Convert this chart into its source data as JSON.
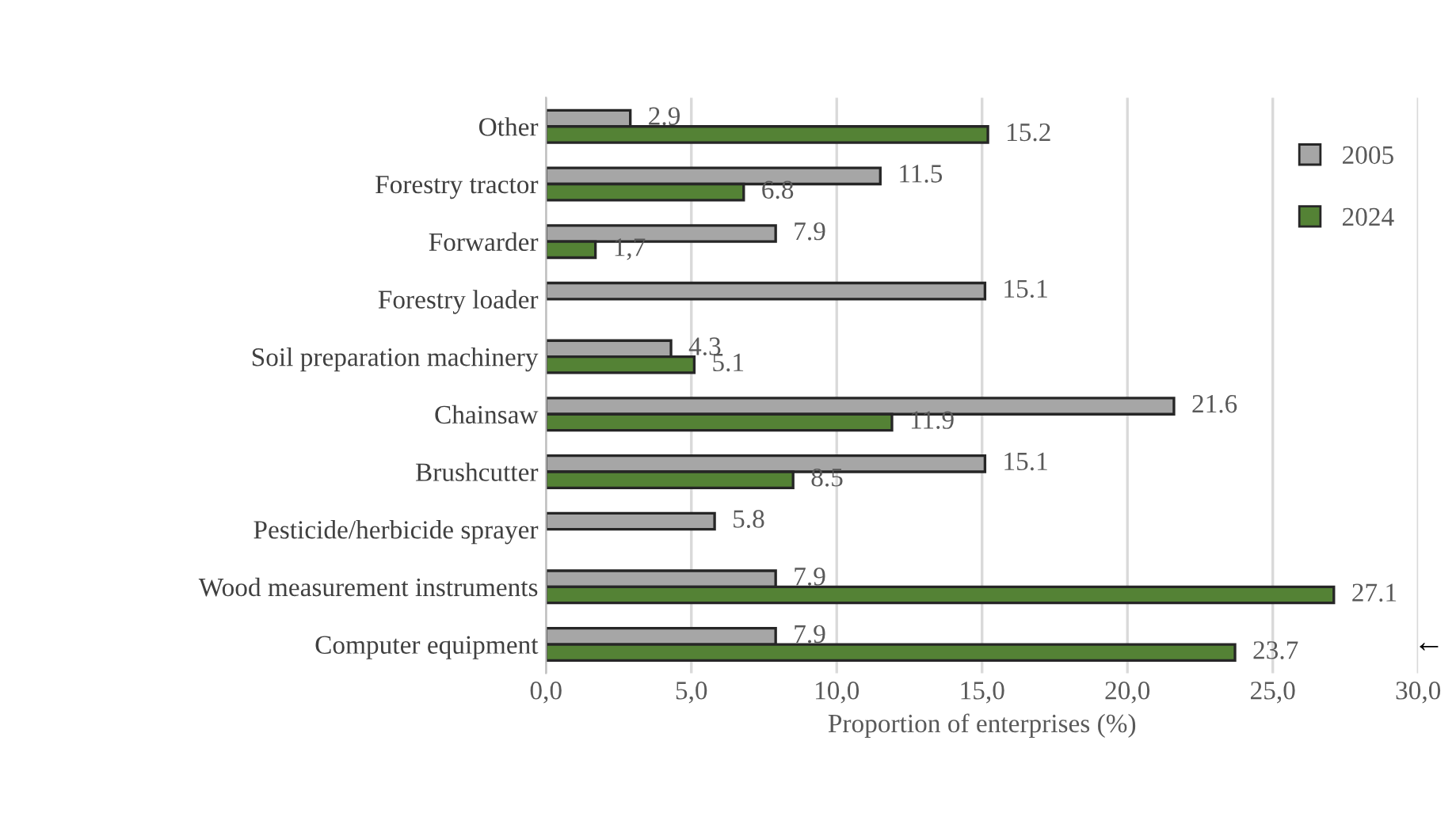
{
  "chart_data": {
    "type": "bar",
    "orientation": "horizontal",
    "xlabel": "Proportion of enterprises (%)",
    "categories": [
      "Other",
      "Forestry tractor",
      "Forwarder",
      "Forestry loader",
      "Soil preparation machinery",
      "Chainsaw",
      "Brushcutter",
      "Pesticide/herbicide sprayer",
      "Wood measurement instruments",
      "Computer equipment"
    ],
    "series": [
      {
        "name": "2005",
        "color": "#a6a6a6",
        "values": [
          2.9,
          11.5,
          7.9,
          15.1,
          4.3,
          21.6,
          15.1,
          5.8,
          7.9,
          7.9
        ],
        "value_labels": [
          "2.9",
          "11.5",
          "7.9",
          "15.1",
          "4.3",
          "21.6",
          "15.1",
          "5.8",
          "7.9",
          "7.9"
        ]
      },
      {
        "name": "2024",
        "color": "#548235",
        "values": [
          15.2,
          6.8,
          1.7,
          null,
          5.1,
          11.9,
          8.5,
          null,
          27.1,
          23.7
        ],
        "value_labels": [
          "15.2",
          "6.8",
          "1,7",
          null,
          "5.1",
          "11.9",
          "8.5",
          null,
          "27.1",
          "23.7"
        ]
      }
    ],
    "xlim": [
      0,
      30
    ],
    "xticks": [
      {
        "value": 0,
        "label": "0,0"
      },
      {
        "value": 5,
        "label": "5,0"
      },
      {
        "value": 10,
        "label": "10,0"
      },
      {
        "value": 15,
        "label": "15,0"
      },
      {
        "value": 20,
        "label": "20,0"
      },
      {
        "value": 25,
        "label": "25,0"
      },
      {
        "value": 30,
        "label": "30,0"
      }
    ],
    "grid": "x",
    "legend": "top right",
    "annotations": [
      "←"
    ]
  }
}
